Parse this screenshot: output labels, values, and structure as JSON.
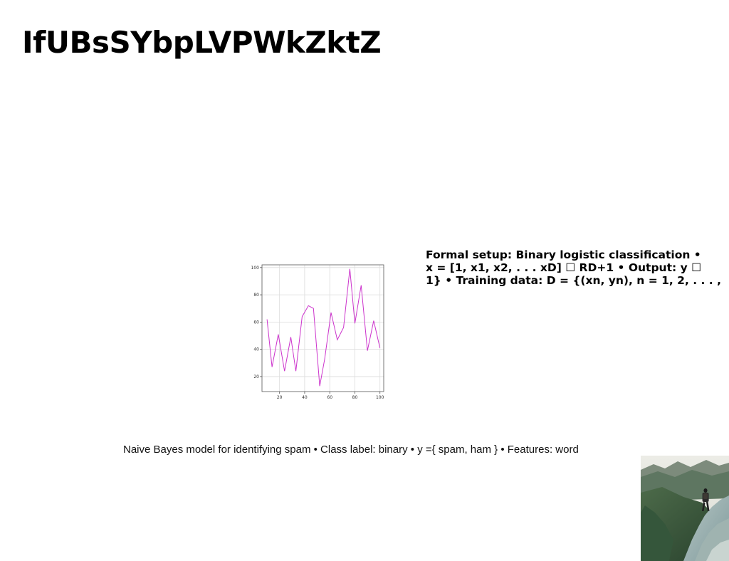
{
  "slide": {
    "title": "IfUBsSYbpLVPWkZktZ",
    "setup_text": "Formal setup: Binary logistic classification •\nx = [1, x1, x2, . . . xD] ☐ RD+1 • Output: y ☐\n1} • Training data: D = {(xn, yn), n = 1, 2, . . . ,",
    "bayes_text": "Naive Bayes model for identifying spam • Class label: binary • y ={ spam, ham } • Features: word"
  },
  "photo": {
    "subject": "hiker on mountain ridge"
  },
  "chart_data": {
    "type": "line",
    "x": [
      10,
      14,
      19,
      24,
      29,
      33,
      38,
      43,
      47,
      52,
      56,
      61,
      66,
      71,
      76,
      80,
      85,
      90,
      95,
      100
    ],
    "series": [
      {
        "values": [
          62,
          27,
          51,
          24,
          49,
          24,
          64,
          72,
          70,
          13,
          33,
          67,
          47,
          56,
          99,
          59,
          87,
          39,
          61,
          41
        ]
      }
    ],
    "xticks": [
      20,
      40,
      60,
      80,
      100
    ],
    "yticks": [
      20,
      40,
      60,
      80,
      100
    ],
    "xlim": [
      6,
      103
    ],
    "ylim": [
      9,
      102
    ],
    "grid": true,
    "line_color": "#cc33cc"
  }
}
